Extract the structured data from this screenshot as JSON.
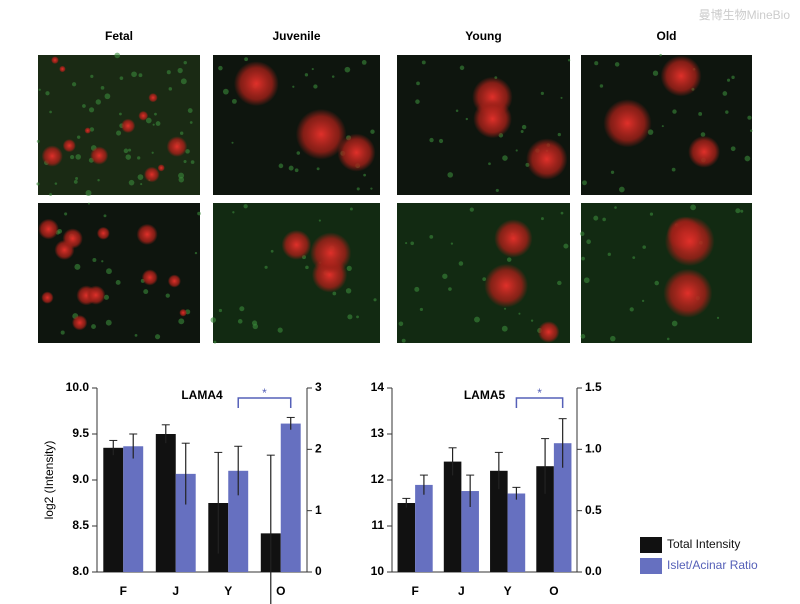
{
  "watermark": "曼博生物MineBio",
  "panel_labels": [
    "Fetal",
    "Juvenile",
    "Young",
    "Old"
  ],
  "ylabel": "log2 (Intensity)",
  "chart_data": [
    {
      "type": "bar",
      "title": "LAMA4",
      "categories": [
        "F",
        "J",
        "Y",
        "O"
      ],
      "ylim": [
        8,
        10
      ],
      "yticks": [
        {
          "value": 8,
          "label": "8.0"
        },
        {
          "value": 8.5,
          "label": "8.5"
        },
        {
          "value": 9,
          "label": "9.0"
        },
        {
          "value": 9.5,
          "label": "9.5"
        },
        {
          "value": 10,
          "label": "10.0"
        }
      ],
      "y2lim": [
        0,
        3
      ],
      "y2ticks": [
        0,
        1,
        2,
        3
      ],
      "series": [
        {
          "name": "Total Intensity",
          "color": "#111111",
          "values": [
            9.35,
            9.5,
            8.75,
            8.42
          ],
          "errors": [
            0.08,
            0.1,
            0.55,
            0.85
          ]
        },
        {
          "name": "Islet/Acinar Ratio",
          "color": "#6670c0",
          "axis": "y2",
          "values": [
            2.05,
            1.6,
            1.65,
            2.42
          ],
          "errors": [
            0.2,
            0.5,
            0.4,
            0.1
          ]
        }
      ],
      "annotation": "*"
    },
    {
      "type": "bar",
      "title": "LAMA5",
      "categories": [
        "F",
        "J",
        "Y",
        "O"
      ],
      "ylim": [
        10,
        14
      ],
      "yticks": [
        10,
        11,
        12,
        13,
        14
      ],
      "y2lim": [
        0,
        1.5
      ],
      "y2ticks": [
        {
          "value": 0,
          "label": "0.0"
        },
        {
          "value": 0.5,
          "label": "0.5"
        },
        {
          "value": 1,
          "label": "1.0"
        },
        {
          "value": 1.5,
          "label": "1.5"
        }
      ],
      "series": [
        {
          "name": "Total Intensity",
          "color": "#111111",
          "values": [
            11.5,
            12.4,
            12.2,
            12.3
          ],
          "errors": [
            0.1,
            0.3,
            0.4,
            0.6
          ]
        },
        {
          "name": "Islet/Acinar Ratio",
          "color": "#6670c0",
          "axis": "y2",
          "values": [
            0.71,
            0.66,
            0.64,
            1.05
          ],
          "errors": [
            0.08,
            0.13,
            0.05,
            0.2
          ]
        }
      ],
      "annotation": "*"
    }
  ]
}
